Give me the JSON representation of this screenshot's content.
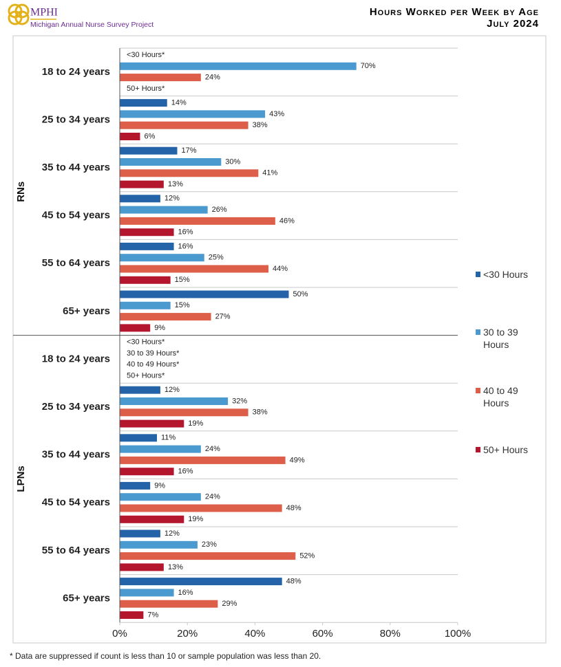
{
  "header": {
    "logo": "MPHI",
    "project": "Michigan Annual Nurse Survey Project"
  },
  "chart_data": {
    "type": "bar",
    "orientation": "horizontal",
    "title": "Hours Worked per Week by Age",
    "subtitle": "July 2024",
    "legend": "right",
    "series": [
      {
        "name": "<30 Hours",
        "color": "#2563a8"
      },
      {
        "name": "30 to 39 Hours",
        "color": "#4a9ad0"
      },
      {
        "name": "40 to 49 Hours",
        "color": "#dd5f49"
      },
      {
        "name": "50+ Hours",
        "color": "#b3162d"
      }
    ],
    "panels": [
      {
        "label": "RNs",
        "categories": [
          "18 to 24 years",
          "25 to 34 years",
          "35 to 44 years",
          "45 to 54 years",
          "55 to 64 years",
          "65+ years"
        ],
        "values": [
          [
            null,
            14,
            17,
            12,
            16,
            50
          ],
          [
            70,
            43,
            30,
            26,
            25,
            15
          ],
          [
            24,
            38,
            41,
            46,
            44,
            27
          ],
          [
            null,
            6,
            13,
            16,
            15,
            9
          ]
        ],
        "value_labels": [
          [
            "<30 Hours*",
            "14%",
            "17%",
            "12%",
            "16%",
            "50%"
          ],
          [
            "70%",
            "43%",
            "30%",
            "26%",
            "25%",
            "15%"
          ],
          [
            "24%",
            "38%",
            "41%",
            "46%",
            "44%",
            "27%"
          ],
          [
            "50+ Hours*",
            "6%",
            "13%",
            "16%",
            "15%",
            "9%"
          ]
        ]
      },
      {
        "label": "LPNs",
        "categories": [
          "18 to 24 years",
          "25 to 34 years",
          "35 to 44 years",
          "45 to 54 years",
          "55 to 64 years",
          "65+ years"
        ],
        "values": [
          [
            null,
            12,
            11,
            9,
            12,
            48
          ],
          [
            null,
            32,
            24,
            24,
            23,
            16
          ],
          [
            null,
            38,
            49,
            48,
            52,
            29
          ],
          [
            null,
            19,
            16,
            19,
            13,
            7
          ]
        ],
        "value_labels": [
          [
            "<30 Hours*",
            "12%",
            "11%",
            "9%",
            "12%",
            "48%"
          ],
          [
            "30 to 39 Hours*",
            "32%",
            "24%",
            "24%",
            "23%",
            "16%"
          ],
          [
            "40 to 49 Hours*",
            "38%",
            "49%",
            "48%",
            "52%",
            "29%"
          ],
          [
            "50+ Hours*",
            "19%",
            "16%",
            "19%",
            "13%",
            "7%"
          ]
        ]
      }
    ],
    "xlim": [
      0,
      100
    ],
    "xticks": [
      {
        "value": 0,
        "label": "0%"
      },
      {
        "value": 20,
        "label": "20%"
      },
      {
        "value": 40,
        "label": "40%"
      },
      {
        "value": 60,
        "label": "60%"
      },
      {
        "value": 80,
        "label": "80%"
      },
      {
        "value": 100,
        "label": "100%"
      }
    ],
    "footnote": "* Data are suppressed if count is less than 10 or sample population was less than 20."
  }
}
